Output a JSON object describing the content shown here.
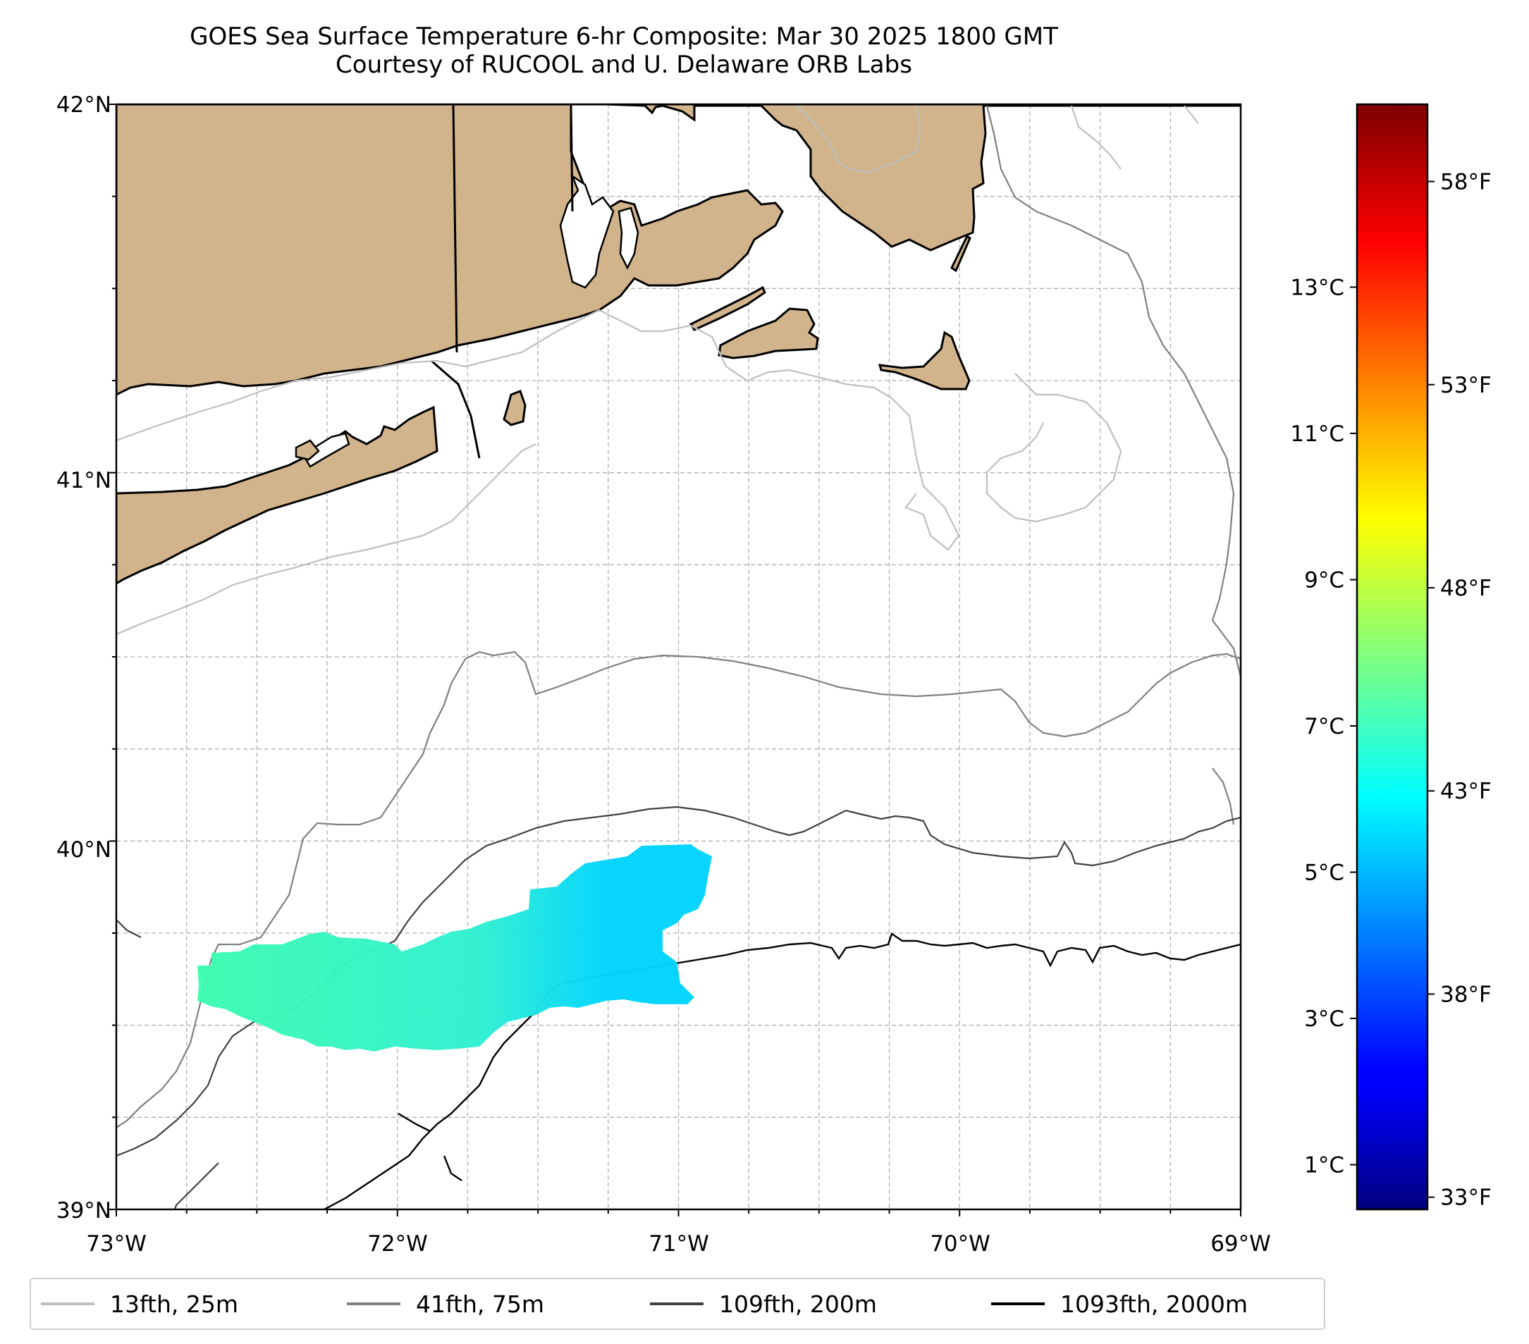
{
  "title": {
    "line1": "GOES Sea Surface Temperature 6-hr Composite: Mar 30 2025 1800 GMT",
    "line2": "Courtesy of RUCOOL and U. Delaware ORB Labs"
  },
  "map": {
    "extent": {
      "lon_min": -73,
      "lon_max": -69,
      "lat_min": 39,
      "lat_max": 42
    },
    "land_color": "#d2b48c",
    "coast_color": "#000000",
    "grid": true,
    "lat_ticks": [
      "42°N",
      "41°N",
      "40°N",
      "39°N"
    ],
    "lon_ticks": [
      "73°W",
      "72°W",
      "71°W",
      "70°W",
      "69°W"
    ]
  },
  "colorbar": {
    "colormap": "jet",
    "celsius_ticks": [
      "13°C",
      "11°C",
      "9°C",
      "7°C",
      "5°C",
      "3°C",
      "1°C"
    ],
    "fahrenheit_ticks": [
      "58°F",
      "53°F",
      "48°F",
      "43°F",
      "38°F",
      "33°F"
    ]
  },
  "sst_patch": {
    "west_color": "#3dfcb0",
    "east_color": "#00d4ff",
    "approx_temp_west_c": 6.5,
    "approx_temp_east_c": 4.8
  },
  "legend": {
    "items": [
      {
        "label": "13fth, 25m",
        "color": "#bfbfbf"
      },
      {
        "label": "41fth, 75m",
        "color": "#808080"
      },
      {
        "label": "109fth, 200m",
        "color": "#404040"
      },
      {
        "label": "1093fth, 2000m",
        "color": "#000000"
      }
    ]
  }
}
